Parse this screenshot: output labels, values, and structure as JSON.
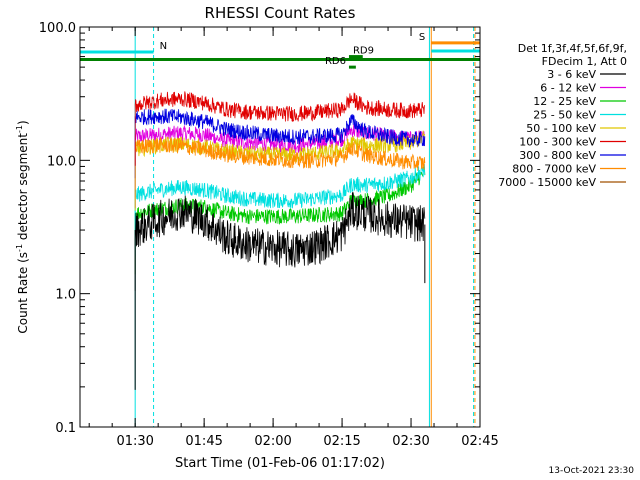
{
  "chart_data": {
    "type": "line",
    "title": "RHESSI Count Rates",
    "xlabel": "Start Time (01-Feb-06 01:17:02)",
    "ylabel_main": "Count Rate (s",
    "ylabel_sup1": "-1",
    "ylabel_mid": " detector segment",
    "ylabel_sup2": "-1",
    "ylabel_end": ")",
    "yscale": "log",
    "ylim": [
      0.1,
      100
    ],
    "xlim_minutes": [
      1.0,
      88.0
    ],
    "x_ticks": [
      {
        "minute": 13,
        "label": "01:30"
      },
      {
        "minute": 28,
        "label": "01:45"
      },
      {
        "minute": 43,
        "label": "02:00"
      },
      {
        "minute": 58,
        "label": "02:15"
      },
      {
        "minute": 73,
        "label": "02:30"
      },
      {
        "minute": 88,
        "label": "02:45"
      }
    ],
    "y_ticks": [
      {
        "value": 0.1,
        "label": "0.1"
      },
      {
        "value": 1.0,
        "label": "1.0"
      },
      {
        "value": 10.0,
        "label": "10.0"
      },
      {
        "value": 100.0,
        "label": "100.0"
      }
    ],
    "legend_header": [
      "Det 1f,3f,4f,5f,6f,9f,",
      "FDecim 1, Att 0"
    ],
    "legend_position": "right",
    "series": [
      {
        "name": "3 - 6 keV",
        "color": "#000000",
        "points": [
          [
            13,
            3.0
          ],
          [
            18,
            3.6
          ],
          [
            23,
            4.2
          ],
          [
            28,
            3.6
          ],
          [
            33,
            2.6
          ],
          [
            38,
            2.3
          ],
          [
            43,
            2.2
          ],
          [
            48,
            2.1
          ],
          [
            53,
            2.3
          ],
          [
            58,
            2.8
          ],
          [
            60,
            4.2
          ],
          [
            63,
            4.0
          ],
          [
            68,
            3.6
          ],
          [
            73,
            3.4
          ],
          [
            76,
            3.3
          ]
        ]
      },
      {
        "name": "6 - 12 keV",
        "color": "#e000e0",
        "points": [
          [
            13,
            15.0
          ],
          [
            18,
            15.5
          ],
          [
            23,
            16.0
          ],
          [
            28,
            15.5
          ],
          [
            33,
            14.0
          ],
          [
            38,
            13.5
          ],
          [
            43,
            13.2
          ],
          [
            48,
            13.0
          ],
          [
            53,
            13.5
          ],
          [
            58,
            14.5
          ],
          [
            60,
            17.0
          ],
          [
            63,
            16.0
          ],
          [
            68,
            15.0
          ],
          [
            73,
            14.5
          ],
          [
            76,
            14.8
          ]
        ]
      },
      {
        "name": "12 - 25 keV",
        "color": "#00c800",
        "points": [
          [
            13,
            4.0
          ],
          [
            18,
            4.3
          ],
          [
            23,
            4.6
          ],
          [
            28,
            4.5
          ],
          [
            33,
            4.0
          ],
          [
            38,
            3.8
          ],
          [
            43,
            3.8
          ],
          [
            48,
            3.8
          ],
          [
            53,
            3.9
          ],
          [
            58,
            4.0
          ],
          [
            60,
            5.0
          ],
          [
            63,
            5.0
          ],
          [
            68,
            5.4
          ],
          [
            73,
            6.5
          ],
          [
            76,
            8.2
          ]
        ]
      },
      {
        "name": "25 - 50 keV",
        "color": "#00e0e0",
        "points": [
          [
            13,
            5.5
          ],
          [
            18,
            6.0
          ],
          [
            23,
            6.3
          ],
          [
            28,
            6.0
          ],
          [
            33,
            5.4
          ],
          [
            38,
            5.1
          ],
          [
            43,
            5.0
          ],
          [
            48,
            5.0
          ],
          [
            53,
            5.2
          ],
          [
            58,
            5.5
          ],
          [
            60,
            6.6
          ],
          [
            63,
            6.5
          ],
          [
            68,
            6.8
          ],
          [
            73,
            7.4
          ],
          [
            76,
            8.5
          ]
        ]
      },
      {
        "name": "50 - 100 keV",
        "color": "#e0c800",
        "points": [
          [
            13,
            12.0
          ],
          [
            18,
            13.0
          ],
          [
            23,
            13.2
          ],
          [
            28,
            12.6
          ],
          [
            33,
            11.6
          ],
          [
            38,
            11.2
          ],
          [
            43,
            11.0
          ],
          [
            48,
            11.0
          ],
          [
            53,
            11.3
          ],
          [
            58,
            11.8
          ],
          [
            60,
            13.5
          ],
          [
            63,
            13.0
          ],
          [
            68,
            13.0
          ],
          [
            73,
            13.5
          ],
          [
            76,
            15.0
          ]
        ]
      },
      {
        "name": "100 - 300 keV",
        "color": "#e00000",
        "points": [
          [
            13,
            26.0
          ],
          [
            18,
            28.0
          ],
          [
            23,
            29.0
          ],
          [
            28,
            27.0
          ],
          [
            33,
            24.0
          ],
          [
            38,
            23.0
          ],
          [
            43,
            22.5
          ],
          [
            48,
            22.3
          ],
          [
            53,
            23.0
          ],
          [
            58,
            24.0
          ],
          [
            60,
            29.0
          ],
          [
            63,
            25.0
          ],
          [
            68,
            24.0
          ],
          [
            73,
            23.5
          ],
          [
            76,
            24.0
          ]
        ]
      },
      {
        "name": "300 - 800 keV",
        "color": "#0000e0",
        "points": [
          [
            13,
            21.0
          ],
          [
            18,
            21.5
          ],
          [
            23,
            21.0
          ],
          [
            28,
            19.5
          ],
          [
            33,
            17.0
          ],
          [
            38,
            16.0
          ],
          [
            43,
            15.3
          ],
          [
            48,
            15.0
          ],
          [
            53,
            15.2
          ],
          [
            58,
            15.5
          ],
          [
            60,
            20.0
          ],
          [
            63,
            16.5
          ],
          [
            68,
            15.0
          ],
          [
            73,
            14.3
          ],
          [
            76,
            14.5
          ]
        ]
      },
      {
        "name": "800 - 7000 keV",
        "color": "#ff8c00",
        "points": [
          [
            13,
            12.5
          ],
          [
            18,
            13.0
          ],
          [
            23,
            12.8
          ],
          [
            28,
            12.0
          ],
          [
            33,
            11.0
          ],
          [
            38,
            10.5
          ],
          [
            43,
            10.2
          ],
          [
            48,
            10.0
          ],
          [
            53,
            10.0
          ],
          [
            58,
            10.5
          ],
          [
            60,
            12.5
          ],
          [
            63,
            11.0
          ],
          [
            68,
            10.2
          ],
          [
            73,
            9.6
          ],
          [
            76,
            9.5
          ]
        ]
      },
      {
        "name": "7000 - 15000 keV",
        "color": "#a05000",
        "points": []
      }
    ],
    "vertical_markers": [
      {
        "minute": 13,
        "color": "#00e0e0",
        "style": "solid",
        "y_top": 100,
        "y_bottom": 0.1
      },
      {
        "minute": 17,
        "color": "#00e0e0",
        "style": "dashed"
      },
      {
        "minute": 77,
        "color": "#00e0e0",
        "style": "solid"
      },
      {
        "minute": 77.4,
        "color": "#ff8c00",
        "style": "solid"
      },
      {
        "minute": 86.6,
        "color": "#00e0e0",
        "style": "dashed"
      },
      {
        "minute": 86.9,
        "color": "#ff8c00",
        "style": "dashed"
      }
    ],
    "horizontal_bars": [
      {
        "label": "N",
        "color": "#00e0e0",
        "x0": 1.0,
        "x1": 17.0,
        "y": 65
      },
      {
        "label": "",
        "color": "#008000",
        "x0": 1.0,
        "x1": 88.0,
        "y": 57
      },
      {
        "label": "RD9",
        "color": "#008000",
        "x0": 59.5,
        "x1": 62.5,
        "y": 60
      },
      {
        "label": "RD6",
        "color": "#008000",
        "x0": 59.5,
        "x1": 61.0,
        "y": 50
      },
      {
        "label": "S",
        "color": "#ff8c00",
        "x0": 77.4,
        "x1": 88.0,
        "y": 76
      },
      {
        "label": "",
        "color": "#00e0e0",
        "x0": 77.4,
        "x1": 88.0,
        "y": 66
      }
    ],
    "footer_date": "13-Oct-2021 23:30"
  }
}
